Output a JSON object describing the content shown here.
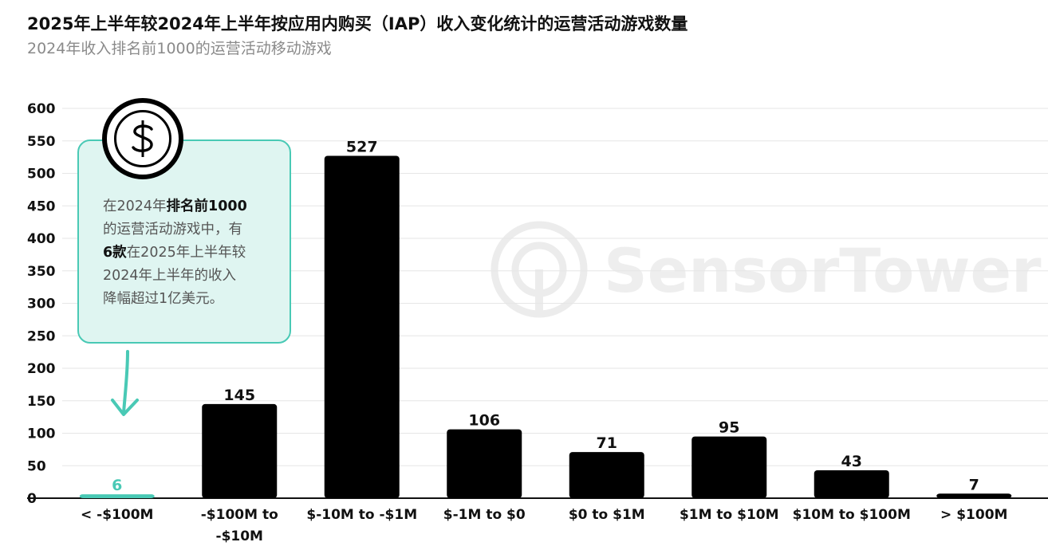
{
  "header": {
    "title": "2025年上半年较2024年上半年按应用内购买（IAP）收入变化统计的运营活动游戏数量",
    "subtitle": "2024年收入排名前1000的运营活动移动游戏"
  },
  "watermark": {
    "text": "SensorTower",
    "icon": "sensor-tower-logo-icon"
  },
  "callout": {
    "icon": "dollar-coin-icon",
    "arrow_icon": "arrow-down-icon",
    "line1_pre": "在2024年",
    "line1_bold": "排名前1000",
    "line2": "的运营活动游戏中，有",
    "line3_bold": "6款",
    "line3_post": "在2025年上半年较",
    "line4": "2024年上半年的收入",
    "line5": "降幅超过1亿美元。",
    "accent_color": "#49c9b5",
    "fill_color": "#dff5f1"
  },
  "colors": {
    "bar": "#000000",
    "highlight_bar": "#49c9b5",
    "grid": "#e6e6e6",
    "axis": "#111111"
  },
  "chart_data": {
    "type": "bar",
    "categories": [
      "< -$100M",
      "-$100M to -$10M",
      "$-10M to -$1M",
      "$-1M to $0",
      "$0 to $1M",
      "$1M to $10M",
      "$10M to $100M",
      "> $100M"
    ],
    "category_lines": [
      [
        "< -$100M"
      ],
      [
        "-$100M to",
        "-$10M"
      ],
      [
        "$-10M to -$1M"
      ],
      [
        "$-1M to $0"
      ],
      [
        "$0 to $1M"
      ],
      [
        "$1M to $10M"
      ],
      [
        "$10M to $100M"
      ],
      [
        "> $100M"
      ]
    ],
    "values": [
      6,
      145,
      527,
      106,
      71,
      95,
      43,
      7
    ],
    "highlight_index": 0,
    "yticks": [
      0,
      50,
      100,
      150,
      200,
      250,
      300,
      350,
      400,
      450,
      500,
      550,
      600
    ],
    "ylim": [
      0,
      600
    ],
    "grid": true,
    "legend": "none",
    "xlabel": "",
    "ylabel": ""
  }
}
